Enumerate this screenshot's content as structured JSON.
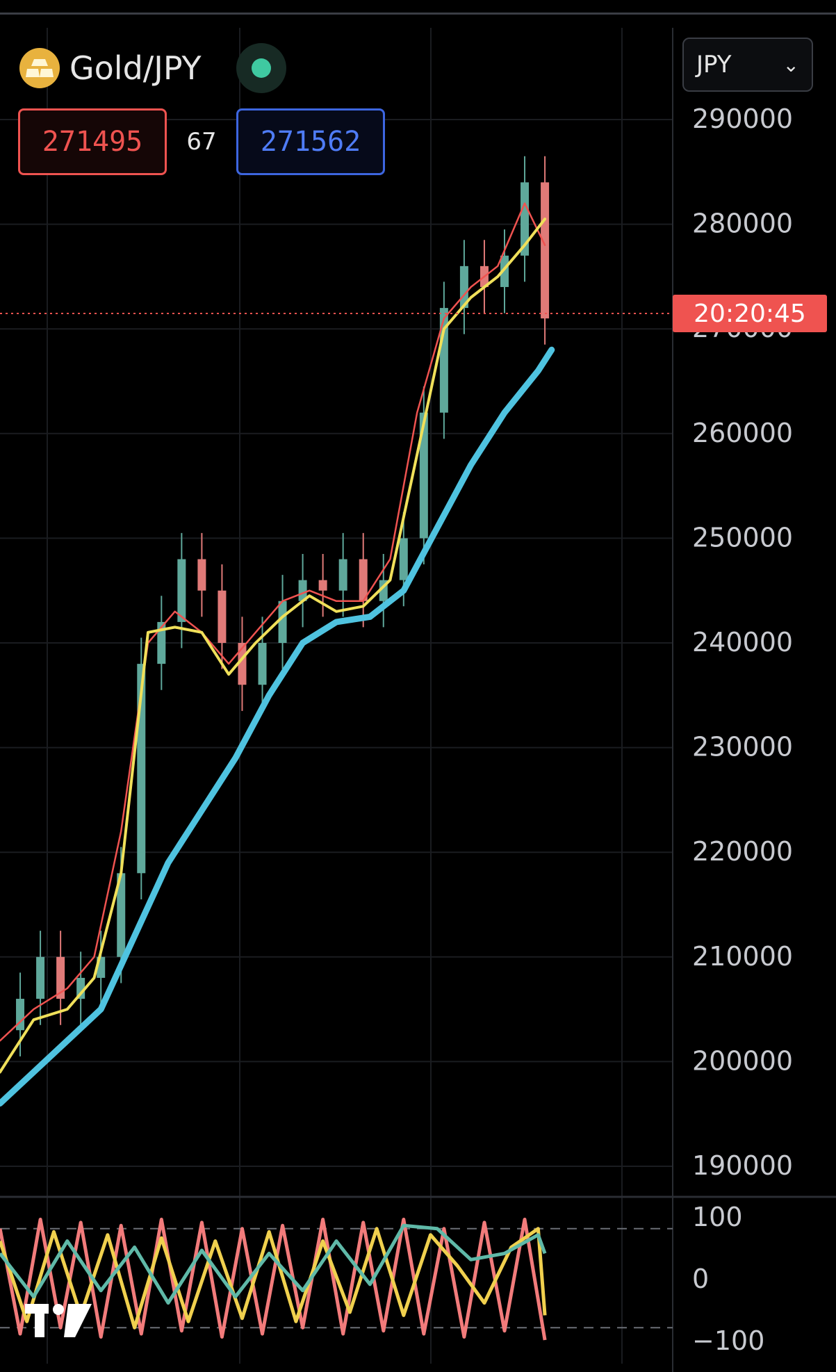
{
  "header": {
    "symbol": "Gold/JPY",
    "logo_icon": "gold-bars-icon",
    "status_icon": "market-open-dot-icon",
    "status_color": "#3fc9a1"
  },
  "quote": {
    "bid": "271495",
    "spread": "67",
    "ask": "271562",
    "bid_color": "#ef5350",
    "ask_color": "#4f7cf6"
  },
  "currency_selector": {
    "value": "JPY",
    "icon": "chevron-down-icon"
  },
  "countdown": "20:20:45",
  "branding": {
    "logo_text": "TV",
    "icon": "tradingview-logo-icon"
  },
  "colors": {
    "background": "#000000",
    "candle_up": "#5fa89b",
    "candle_down": "#e07a78",
    "ma_fast": "#ef5350",
    "ma_mid": "#f0e05a",
    "ma_slow": "#4fc3e0",
    "stoch_k": "#f27b7b",
    "stoch_d": "#f0d04e",
    "stoch_slow": "#5fb9a8"
  },
  "chart_data": [
    {
      "type": "candlestick",
      "title": "Gold/JPY",
      "ylim": [
        185000,
        292000
      ],
      "y_ticks": [
        "290000",
        "280000",
        "270000",
        "260000",
        "250000",
        "240000",
        "230000",
        "220000",
        "210000",
        "200000",
        "190000"
      ],
      "y_tick_values": [
        290000,
        280000,
        270000,
        260000,
        250000,
        240000,
        230000,
        220000,
        210000,
        200000,
        190000
      ],
      "last_price": 271495,
      "grid": true,
      "series": [
        {
          "name": "",
          "style": "ohlc",
          "x": [
            0,
            0.03,
            0.06,
            0.09,
            0.12,
            0.15,
            0.18,
            0.21,
            0.24,
            0.27,
            0.3,
            0.33,
            0.36,
            0.39,
            0.42,
            0.45,
            0.48,
            0.51,
            0.54,
            0.57,
            0.6,
            0.63,
            0.66,
            0.69,
            0.72,
            0.75,
            0.78,
            0.81
          ],
          "values": [
            203000,
            206000,
            210000,
            206000,
            208000,
            210000,
            218000,
            238000,
            242000,
            248000,
            245000,
            240000,
            236000,
            240000,
            244000,
            246000,
            245000,
            248000,
            244000,
            246000,
            250000,
            262000,
            272000,
            276000,
            274000,
            277000,
            284000,
            271000
          ]
        },
        {
          "name": "",
          "style": "line",
          "color_key": "ma_fast",
          "x": [
            0,
            0.05,
            0.1,
            0.14,
            0.18,
            0.22,
            0.26,
            0.3,
            0.34,
            0.38,
            0.42,
            0.46,
            0.5,
            0.54,
            0.58,
            0.62,
            0.66,
            0.7,
            0.74,
            0.78,
            0.81
          ],
          "values": [
            202000,
            205000,
            207000,
            210000,
            222000,
            240000,
            243000,
            241000,
            238000,
            241000,
            244000,
            245000,
            244000,
            244000,
            248000,
            262000,
            271000,
            274000,
            276000,
            282000,
            278000
          ]
        },
        {
          "name": "",
          "style": "line",
          "color_key": "ma_mid",
          "x": [
            0,
            0.05,
            0.1,
            0.14,
            0.18,
            0.22,
            0.26,
            0.3,
            0.34,
            0.38,
            0.42,
            0.46,
            0.5,
            0.54,
            0.58,
            0.62,
            0.66,
            0.7,
            0.74,
            0.78,
            0.81
          ],
          "values": [
            199000,
            204000,
            205000,
            208000,
            218000,
            241000,
            241500,
            241000,
            237000,
            240000,
            242500,
            244500,
            243000,
            243500,
            246000,
            258000,
            270000,
            273000,
            275000,
            278000,
            280500
          ]
        },
        {
          "name": "",
          "style": "line",
          "color_key": "ma_slow",
          "x": [
            0,
            0.05,
            0.1,
            0.15,
            0.2,
            0.25,
            0.3,
            0.35,
            0.4,
            0.45,
            0.5,
            0.55,
            0.6,
            0.65,
            0.7,
            0.75,
            0.8,
            0.82
          ],
          "values": [
            196000,
            199000,
            202000,
            205000,
            212000,
            219000,
            224000,
            229000,
            235000,
            240000,
            242000,
            242500,
            245000,
            251000,
            257000,
            262000,
            266000,
            268000
          ]
        }
      ]
    },
    {
      "type": "line",
      "title": "",
      "ylim": [
        -100,
        100
      ],
      "y_ticks": [
        "100",
        "0",
        "−100"
      ],
      "y_tick_values": [
        100,
        0,
        -100
      ],
      "levels": [
        80,
        -80
      ],
      "series": [
        {
          "name": "",
          "color_key": "stoch_k",
          "x": [
            0,
            0.03,
            0.06,
            0.09,
            0.12,
            0.15,
            0.18,
            0.21,
            0.24,
            0.27,
            0.3,
            0.33,
            0.36,
            0.39,
            0.42,
            0.45,
            0.48,
            0.51,
            0.54,
            0.57,
            0.6,
            0.63,
            0.66,
            0.69,
            0.72,
            0.75,
            0.78,
            0.81
          ],
          "values": [
            80,
            -90,
            95,
            -80,
            90,
            -95,
            85,
            -90,
            95,
            -85,
            90,
            -95,
            80,
            -90,
            85,
            -80,
            95,
            -90,
            90,
            -85,
            95,
            -90,
            80,
            -95,
            90,
            -85,
            95,
            -100
          ]
        },
        {
          "name": "",
          "color_key": "stoch_d",
          "x": [
            0,
            0.04,
            0.08,
            0.12,
            0.16,
            0.2,
            0.24,
            0.28,
            0.32,
            0.36,
            0.4,
            0.44,
            0.48,
            0.52,
            0.56,
            0.6,
            0.64,
            0.68,
            0.72,
            0.76,
            0.8,
            0.81
          ],
          "values": [
            60,
            -70,
            75,
            -60,
            70,
            -80,
            65,
            -70,
            60,
            -65,
            75,
            -70,
            60,
            -55,
            80,
            -60,
            70,
            20,
            -40,
            50,
            80,
            -60
          ]
        },
        {
          "name": "",
          "color_key": "stoch_slow",
          "x": [
            0,
            0.05,
            0.1,
            0.15,
            0.2,
            0.25,
            0.3,
            0.35,
            0.4,
            0.45,
            0.5,
            0.55,
            0.6,
            0.65,
            0.7,
            0.75,
            0.8,
            0.81
          ],
          "values": [
            40,
            -30,
            60,
            -20,
            50,
            -40,
            45,
            -30,
            40,
            -20,
            60,
            -10,
            85,
            80,
            30,
            40,
            70,
            40
          ]
        }
      ]
    }
  ]
}
